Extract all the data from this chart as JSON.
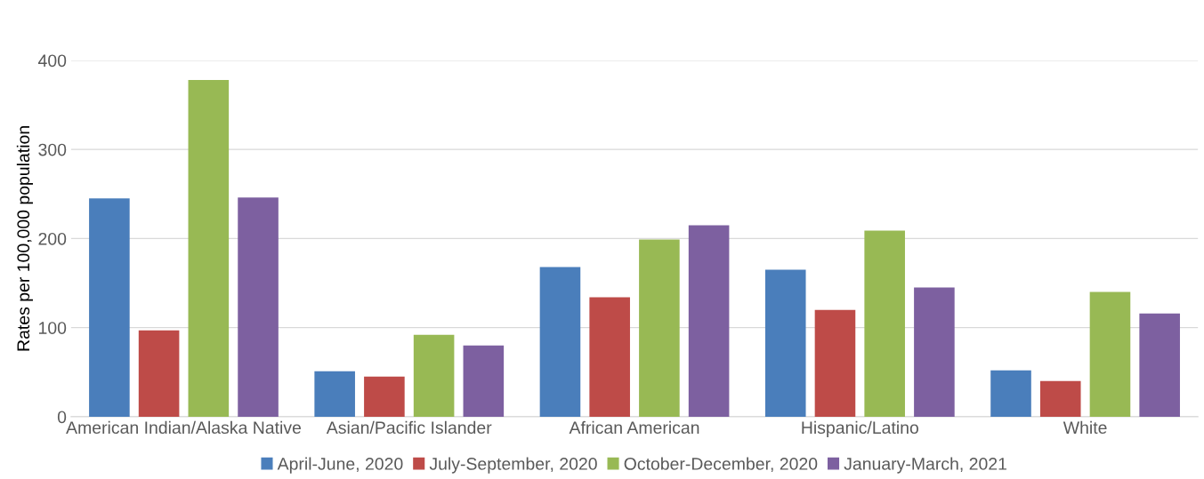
{
  "chart_data": {
    "type": "bar",
    "ylabel": "Rates per 100,000 population",
    "categories": [
      "American Indian/Alaska Native",
      "Asian/Pacific Islander",
      "African American",
      "Hispanic/Latino",
      "White"
    ],
    "series": [
      {
        "name": "April-June, 2020",
        "color": "#4a7ebb",
        "values": [
          245,
          51,
          168,
          165,
          52
        ]
      },
      {
        "name": "July-September, 2020",
        "color": "#be4b48",
        "values": [
          97,
          45,
          134,
          120,
          40
        ]
      },
      {
        "name": "October-December, 2020",
        "color": "#98b954",
        "values": [
          378,
          92,
          199,
          209,
          140
        ]
      },
      {
        "name": "January-March, 2021",
        "color": "#7d60a0",
        "values": [
          246,
          80,
          215,
          145,
          116
        ]
      }
    ],
    "ylim": [
      0,
      400
    ],
    "yticks": [
      0,
      100,
      200,
      300,
      400
    ],
    "grid": "y",
    "legend": "bottom"
  }
}
